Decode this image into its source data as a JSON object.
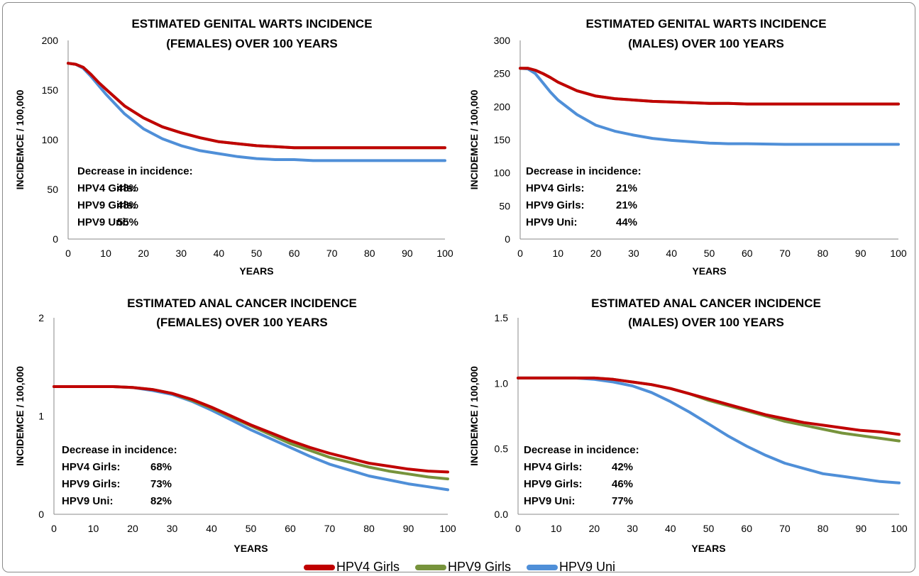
{
  "colors": {
    "HPV4 Girls": "#c00000",
    "HPV9 Girls": "#77933c",
    "HPV9 Uni": "#4f8fd8"
  },
  "legend": [
    {
      "label": "HPV4 Girls",
      "color": "#c00000"
    },
    {
      "label": "HPV9 Girls",
      "color": "#77933c"
    },
    {
      "label": "HPV9 Uni",
      "color": "#4f8fd8"
    }
  ],
  "chart_data": [
    {
      "type": "line",
      "title": [
        "ESTIMATED GENITAL WARTS INCIDENCE",
        "(FEMALES) OVER 100 YEARS"
      ],
      "xlabel": "YEARS",
      "ylabel": "INCIDEMCE / 100,000",
      "xlim": [
        0,
        100
      ],
      "ylim": [
        0,
        200
      ],
      "xticks": [
        "0",
        "10",
        "20",
        "30",
        "40",
        "50",
        "60",
        "70",
        "80",
        "90",
        "100"
      ],
      "yticks": [
        "0",
        "50",
        "100",
        "150",
        "200"
      ],
      "x": [
        0,
        2,
        4,
        6,
        8,
        10,
        15,
        20,
        25,
        30,
        35,
        40,
        45,
        50,
        55,
        60,
        65,
        70,
        80,
        90,
        100
      ],
      "series": [
        {
          "name": "HPV4 Girls",
          "values": [
            177,
            176,
            173,
            166,
            158,
            151,
            134,
            122,
            113,
            107,
            102,
            98,
            96,
            94,
            93,
            92,
            92,
            92,
            92,
            92,
            92
          ]
        },
        {
          "name": "HPV9 Girls",
          "values": [
            177,
            176,
            173,
            166,
            158,
            151,
            134,
            122,
            113,
            107,
            102,
            98,
            96,
            94,
            93,
            92,
            92,
            92,
            92,
            92,
            92
          ]
        },
        {
          "name": "HPV9 Uni",
          "values": [
            177,
            176,
            172,
            164,
            155,
            146,
            126,
            111,
            101,
            94,
            89,
            86,
            83,
            81,
            80,
            80,
            79,
            79,
            79,
            79,
            79
          ]
        }
      ],
      "annotation": {
        "heading": "Decrease in incidence:",
        "rows": [
          [
            "HPV4 Girls:",
            "48%"
          ],
          [
            "HPV9 Girls:",
            "48%"
          ],
          [
            "HPV9 Uni:",
            "55%"
          ]
        ]
      }
    },
    {
      "type": "line",
      "title": [
        "ESTIMATED GENITAL WARTS INCIDENCE",
        "(MALES) OVER 100 YEARS"
      ],
      "xlabel": "YEARS",
      "ylabel": "INCIDEMCE / 100,000",
      "xlim": [
        0,
        100
      ],
      "ylim": [
        0,
        300
      ],
      "xticks": [
        "0",
        "10",
        "20",
        "30",
        "40",
        "50",
        "60",
        "70",
        "80",
        "90",
        "100"
      ],
      "yticks": [
        "0",
        "50",
        "100",
        "150",
        "200",
        "250",
        "300"
      ],
      "x": [
        0,
        2,
        4,
        6,
        8,
        10,
        15,
        20,
        25,
        30,
        35,
        40,
        45,
        50,
        55,
        60,
        70,
        80,
        90,
        100
      ],
      "series": [
        {
          "name": "HPV4 Girls",
          "values": [
            258,
            258,
            255,
            250,
            244,
            237,
            224,
            216,
            212,
            210,
            208,
            207,
            206,
            205,
            205,
            204,
            204,
            204,
            204,
            204
          ]
        },
        {
          "name": "HPV9 Girls",
          "values": [
            258,
            258,
            255,
            250,
            244,
            237,
            224,
            216,
            212,
            210,
            208,
            207,
            206,
            205,
            205,
            204,
            204,
            204,
            204,
            204
          ]
        },
        {
          "name": "HPV9 Uni",
          "values": [
            258,
            257,
            250,
            236,
            222,
            210,
            188,
            172,
            163,
            157,
            152,
            149,
            147,
            145,
            144,
            144,
            143,
            143,
            143,
            143
          ]
        }
      ],
      "annotation": {
        "heading": "Decrease in incidence:",
        "rows": [
          [
            "HPV4 Girls:",
            "21%"
          ],
          [
            "HPV9 Girls:",
            "21%"
          ],
          [
            "HPV9 Uni:",
            "44%"
          ]
        ]
      }
    },
    {
      "type": "line",
      "title": [
        "ESTIMATED ANAL CANCER INCIDENCE",
        "(FEMALES) OVER 100 YEARS"
      ],
      "xlabel": "YEARS",
      "ylabel": "INCIDEMCE / 100,000",
      "xlim": [
        0,
        100
      ],
      "ylim": [
        0,
        2
      ],
      "xticks": [
        "0",
        "10",
        "20",
        "30",
        "40",
        "50",
        "60",
        "70",
        "80",
        "90",
        "100"
      ],
      "yticks": [
        "0",
        "1",
        "2"
      ],
      "x": [
        0,
        10,
        15,
        20,
        25,
        30,
        35,
        40,
        45,
        50,
        55,
        60,
        65,
        70,
        75,
        80,
        85,
        90,
        95,
        100
      ],
      "series": [
        {
          "name": "HPV4 Girls",
          "values": [
            1.3,
            1.3,
            1.3,
            1.29,
            1.27,
            1.23,
            1.17,
            1.09,
            1.0,
            0.91,
            0.83,
            0.75,
            0.68,
            0.62,
            0.57,
            0.52,
            0.49,
            0.46,
            0.44,
            0.43
          ]
        },
        {
          "name": "HPV9 Girls",
          "values": [
            1.3,
            1.3,
            1.3,
            1.29,
            1.27,
            1.23,
            1.16,
            1.08,
            0.99,
            0.9,
            0.81,
            0.72,
            0.65,
            0.58,
            0.53,
            0.48,
            0.44,
            0.41,
            0.38,
            0.36
          ]
        },
        {
          "name": "HPV9 Uni",
          "values": [
            1.3,
            1.3,
            1.3,
            1.29,
            1.26,
            1.22,
            1.15,
            1.06,
            0.96,
            0.86,
            0.77,
            0.68,
            0.59,
            0.51,
            0.45,
            0.39,
            0.35,
            0.31,
            0.28,
            0.25
          ]
        }
      ],
      "annotation": {
        "heading": "Decrease in incidence:",
        "rows": [
          [
            "HPV4 Girls:",
            "68%"
          ],
          [
            "HPV9 Girls:",
            "73%"
          ],
          [
            "HPV9 Uni:",
            "82%"
          ]
        ]
      }
    },
    {
      "type": "line",
      "title": [
        "ESTIMATED ANAL CANCER INCIDENCE",
        "(MALES) OVER 100 YEARS"
      ],
      "xlabel": "YEARS",
      "ylabel": "INCIDEMCE / 100,000",
      "xlim": [
        0,
        100
      ],
      "ylim": [
        0,
        1.5
      ],
      "xticks": [
        "0",
        "10",
        "20",
        "30",
        "40",
        "50",
        "60",
        "70",
        "80",
        "90",
        "100"
      ],
      "yticks": [
        "0.0",
        "0.5",
        "1.0",
        "1.5"
      ],
      "x": [
        0,
        10,
        15,
        20,
        25,
        30,
        35,
        40,
        45,
        50,
        55,
        60,
        65,
        70,
        75,
        80,
        85,
        90,
        95,
        100
      ],
      "series": [
        {
          "name": "HPV4 Girls",
          "values": [
            1.04,
            1.04,
            1.04,
            1.04,
            1.03,
            1.01,
            0.99,
            0.96,
            0.92,
            0.88,
            0.84,
            0.8,
            0.76,
            0.73,
            0.7,
            0.68,
            0.66,
            0.64,
            0.63,
            0.61
          ]
        },
        {
          "name": "HPV9 Girls",
          "values": [
            1.04,
            1.04,
            1.04,
            1.04,
            1.03,
            1.01,
            0.99,
            0.96,
            0.92,
            0.87,
            0.83,
            0.79,
            0.75,
            0.71,
            0.68,
            0.65,
            0.62,
            0.6,
            0.58,
            0.56
          ]
        },
        {
          "name": "HPV9 Uni",
          "values": [
            1.04,
            1.04,
            1.04,
            1.03,
            1.01,
            0.98,
            0.93,
            0.86,
            0.78,
            0.69,
            0.6,
            0.52,
            0.45,
            0.39,
            0.35,
            0.31,
            0.29,
            0.27,
            0.25,
            0.24
          ]
        }
      ],
      "annotation": {
        "heading": "Decrease in incidence:",
        "rows": [
          [
            "HPV4 Girls:",
            "42%"
          ],
          [
            "HPV9 Girls:",
            "46%"
          ],
          [
            "HPV9 Uni:",
            "77%"
          ]
        ]
      }
    }
  ]
}
